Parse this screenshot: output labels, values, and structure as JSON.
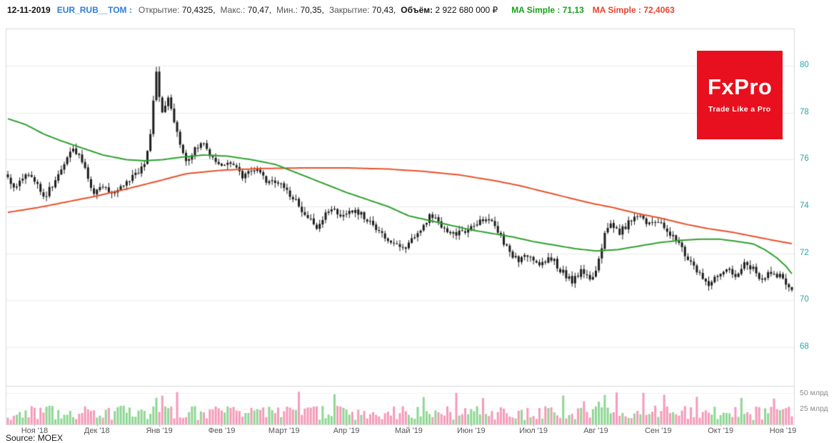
{
  "header": {
    "date": "12-11-2019",
    "symbol": "EUR_RUB__TOM :",
    "stats": [
      {
        "label": "Открытие:",
        "value": "70,4325,"
      },
      {
        "label": "Макс.:",
        "value": "70,47,"
      },
      {
        "label": "Мин.:",
        "value": "70,35,"
      },
      {
        "label": "Закрытие:",
        "value": "70,43,"
      },
      {
        "label": "Объём:",
        "value": "2 922 680 000 ₽"
      }
    ],
    "ma_fast": {
      "label": "MA Simple :",
      "value": "71,13"
    },
    "ma_slow": {
      "label": "MA Simple :",
      "value": "72,4063"
    }
  },
  "logo": {
    "title": "FxPro",
    "tagline": "Trade Like a Pro",
    "bg": "#e8101e"
  },
  "footer": {
    "source": "Source: MOEX"
  },
  "chart_data": {
    "type": "candlestick",
    "symbol": "EUR_RUB__TOM",
    "values_estimated": true,
    "x_ticks": [
      "Ноя '18",
      "Дек '18",
      "Янв '19",
      "Фев '19",
      "Март '19",
      "Апр '19",
      "Май '19",
      "Июн '19",
      "Июл '19",
      "Авг '19",
      "Сен '19",
      "Окт '19",
      "Ноя '19"
    ],
    "month_start_days": [
      9,
      30,
      51,
      72,
      93,
      114,
      135,
      156,
      177,
      198,
      219,
      240,
      261
    ],
    "n_days": 265,
    "y_ticks": [
      80,
      78,
      76,
      74,
      72,
      70,
      68
    ],
    "y_range": [
      66.4,
      81.6
    ],
    "volume_ticks": [
      {
        "value": 50,
        "label": "50 млрд"
      },
      {
        "value": 25,
        "label": "25 млрд"
      }
    ],
    "volume_max": 57,
    "last_candle": {
      "open": 70.4325,
      "high": 70.47,
      "low": 70.35,
      "close": 70.43,
      "volume": "2 922 680 000 ₽"
    },
    "price_anchors": [
      [
        0,
        75.2
      ],
      [
        3,
        74.8
      ],
      [
        6,
        75.4
      ],
      [
        9,
        75.1
      ],
      [
        12,
        74.4
      ],
      [
        15,
        74.9
      ],
      [
        18,
        75.6
      ],
      [
        22,
        76.5
      ],
      [
        25,
        75.9
      ],
      [
        29,
        74.5
      ],
      [
        32,
        74.8
      ],
      [
        36,
        74.6
      ],
      [
        40,
        75.1
      ],
      [
        44,
        75.4
      ],
      [
        46,
        75.8
      ],
      [
        48,
        77.2
      ],
      [
        50,
        79.7
      ],
      [
        52,
        77.9
      ],
      [
        54,
        78.6
      ],
      [
        56,
        77.6
      ],
      [
        58,
        76.6
      ],
      [
        60,
        76.0
      ],
      [
        63,
        76.4
      ],
      [
        66,
        76.8
      ],
      [
        68,
        76.2
      ],
      [
        71,
        75.7
      ],
      [
        75,
        75.9
      ],
      [
        79,
        75.3
      ],
      [
        83,
        75.6
      ],
      [
        87,
        75.1
      ],
      [
        92,
        74.9
      ],
      [
        96,
        74.4
      ],
      [
        100,
        73.7
      ],
      [
        104,
        73.1
      ],
      [
        108,
        73.9
      ],
      [
        113,
        73.6
      ],
      [
        117,
        73.9
      ],
      [
        121,
        73.4
      ],
      [
        125,
        72.9
      ],
      [
        129,
        72.4
      ],
      [
        134,
        72.3
      ],
      [
        138,
        72.9
      ],
      [
        142,
        73.6
      ],
      [
        146,
        73.2
      ],
      [
        150,
        72.8
      ],
      [
        155,
        72.9
      ],
      [
        159,
        73.5
      ],
      [
        163,
        73.4
      ],
      [
        166,
        72.7
      ],
      [
        169,
        72.0
      ],
      [
        172,
        71.7
      ],
      [
        176,
        71.9
      ],
      [
        179,
        71.5
      ],
      [
        183,
        71.8
      ],
      [
        186,
        71.3
      ],
      [
        190,
        70.8
      ],
      [
        193,
        71.2
      ],
      [
        197,
        70.9
      ],
      [
        199,
        71.8
      ],
      [
        201,
        72.8
      ],
      [
        203,
        73.3
      ],
      [
        206,
        72.9
      ],
      [
        209,
        73.3
      ],
      [
        212,
        73.6
      ],
      [
        216,
        73.2
      ],
      [
        219,
        73.4
      ],
      [
        222,
        73.0
      ],
      [
        225,
        72.5
      ],
      [
        228,
        72.0
      ],
      [
        231,
        71.4
      ],
      [
        234,
        70.9
      ],
      [
        236,
        70.5
      ],
      [
        239,
        71.1
      ],
      [
        242,
        71.4
      ],
      [
        245,
        71.0
      ],
      [
        248,
        71.6
      ],
      [
        251,
        71.3
      ],
      [
        254,
        70.9
      ],
      [
        257,
        71.2
      ],
      [
        260,
        71.0
      ],
      [
        262,
        70.6
      ],
      [
        264,
        70.43
      ]
    ],
    "ma_fast": {
      "name": "MA Simple",
      "last_value": 71.13,
      "color": "#2da12d",
      "anchors": [
        [
          0,
          77.75
        ],
        [
          6,
          77.5
        ],
        [
          12,
          77.1
        ],
        [
          18,
          76.8
        ],
        [
          25,
          76.5
        ],
        [
          32,
          76.2
        ],
        [
          40,
          76.0
        ],
        [
          46,
          75.95
        ],
        [
          52,
          76.0
        ],
        [
          58,
          76.1
        ],
        [
          66,
          76.2
        ],
        [
          74,
          76.15
        ],
        [
          82,
          76.0
        ],
        [
          90,
          75.8
        ],
        [
          96,
          75.5
        ],
        [
          102,
          75.2
        ],
        [
          108,
          74.9
        ],
        [
          114,
          74.6
        ],
        [
          121,
          74.3
        ],
        [
          128,
          74.0
        ],
        [
          135,
          73.6
        ],
        [
          142,
          73.4
        ],
        [
          149,
          73.2
        ],
        [
          156,
          73.0
        ],
        [
          163,
          72.85
        ],
        [
          170,
          72.7
        ],
        [
          177,
          72.5
        ],
        [
          184,
          72.35
        ],
        [
          191,
          72.2
        ],
        [
          198,
          72.1
        ],
        [
          205,
          72.15
        ],
        [
          212,
          72.3
        ],
        [
          219,
          72.45
        ],
        [
          226,
          72.55
        ],
        [
          233,
          72.6
        ],
        [
          240,
          72.6
        ],
        [
          246,
          72.5
        ],
        [
          251,
          72.4
        ],
        [
          255,
          72.15
        ],
        [
          259,
          71.8
        ],
        [
          262,
          71.45
        ],
        [
          264,
          71.13
        ]
      ]
    },
    "ma_slow": {
      "name": "MA Simple",
      "last_value": 72.4063,
      "color": "#e8502a",
      "anchors": [
        [
          0,
          73.75
        ],
        [
          10,
          73.95
        ],
        [
          20,
          74.2
        ],
        [
          30,
          74.45
        ],
        [
          40,
          74.75
        ],
        [
          51,
          75.1
        ],
        [
          60,
          75.4
        ],
        [
          72,
          75.55
        ],
        [
          85,
          75.62
        ],
        [
          100,
          75.65
        ],
        [
          114,
          75.65
        ],
        [
          128,
          75.6
        ],
        [
          140,
          75.5
        ],
        [
          152,
          75.35
        ],
        [
          164,
          75.1
        ],
        [
          172,
          74.9
        ],
        [
          180,
          74.65
        ],
        [
          188,
          74.4
        ],
        [
          196,
          74.15
        ],
        [
          204,
          73.95
        ],
        [
          212,
          73.7
        ],
        [
          220,
          73.5
        ],
        [
          228,
          73.25
        ],
        [
          236,
          73.05
        ],
        [
          244,
          72.9
        ],
        [
          252,
          72.7
        ],
        [
          258,
          72.55
        ],
        [
          264,
          72.41
        ]
      ]
    },
    "candle_color": "#1c1c1c",
    "volume_up_color": "#8fd694",
    "volume_down_color": "#f59ab8",
    "axis_label_color": "#2aa5a5",
    "grid_color": "#ebebeb",
    "frame_color": "#d8d8d8",
    "seed": 20191112,
    "noise": {
      "close_amp": 0.13,
      "wick_amp": 0.2,
      "open_jitter": 0.05
    },
    "volume_base_range": [
      7,
      30
    ],
    "volume_spike_days": [
      50,
      52,
      57,
      98,
      110,
      140,
      151,
      160,
      187,
      194,
      199,
      201,
      205,
      214,
      221,
      232,
      247,
      258
    ],
    "volume_spike_range": [
      36,
      52
    ]
  }
}
